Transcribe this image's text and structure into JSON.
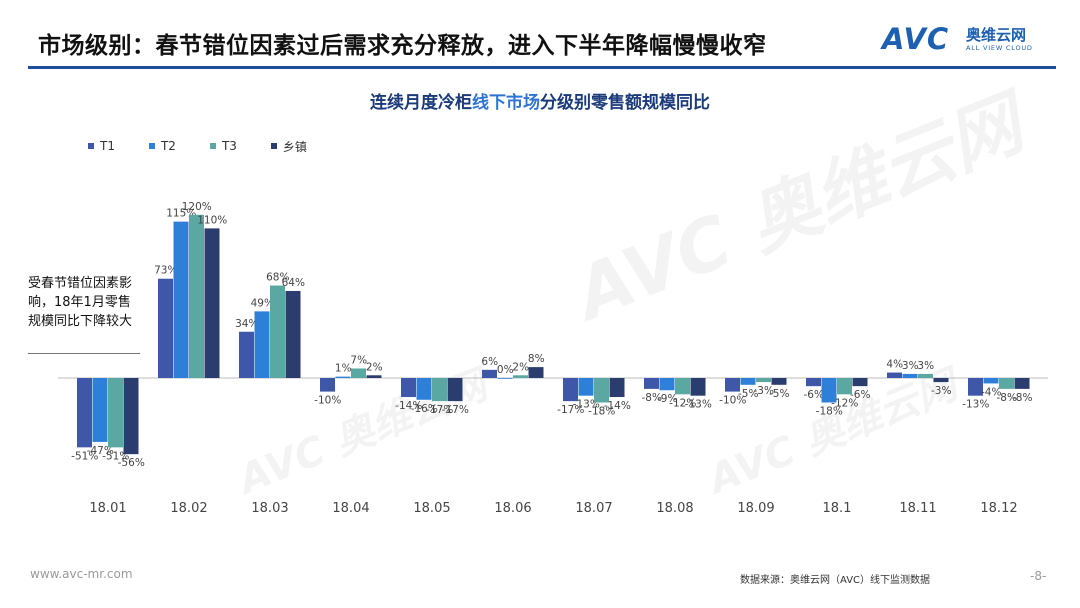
{
  "slide": {
    "title": "市场级别：春节错位因素过后需求充分释放，进入下半年降幅慢慢收窄"
  },
  "logo": {
    "text": "AVC",
    "cn": "奥维云网",
    "en": "ALL VIEW CLOUD"
  },
  "chart_title": {
    "part1": "连续月度冷柜",
    "part2": "线下市场",
    "part3": "分级别零售额规模同比"
  },
  "annotation": "受春节错位因素影响，18年1月零售规模同比下降较大",
  "footer": {
    "website": "www.avc-mr.com",
    "source": "数据来源：奥维云网（AVC）线下监测数据",
    "page": "-8-"
  },
  "colors": {
    "T1": "#3f57a8",
    "T2": "#2e7fd8",
    "T3": "#5ba7a2",
    "乡镇": "#2b3d6e",
    "title_rule": "#1f4f9c"
  },
  "chart_data": {
    "type": "bar",
    "title": "连续月度冷柜线下市场分级别零售额规模同比",
    "categories": [
      "18.01",
      "18.02",
      "18.03",
      "18.04",
      "18.05",
      "18.06",
      "18.07",
      "18.08",
      "18.09",
      "18.1",
      "18.11",
      "18.12"
    ],
    "series": [
      {
        "name": "T1",
        "values": [
          -51,
          73,
          34,
          -10,
          -14,
          6,
          -17,
          -8,
          -10,
          -6,
          4,
          -13
        ]
      },
      {
        "name": "T2",
        "values": [
          -47,
          115,
          49,
          1,
          -16,
          0,
          -13,
          -9,
          -5,
          -18,
          3,
          -4
        ]
      },
      {
        "name": "T3",
        "values": [
          -51,
          120,
          68,
          7,
          -17,
          2,
          -18,
          -12,
          -3,
          -12,
          3,
          -8
        ]
      },
      {
        "name": "乡镇",
        "values": [
          -56,
          110,
          64,
          2,
          -17,
          8,
          -14,
          -13,
          -5,
          -6,
          -3,
          -8
        ]
      }
    ],
    "unit": "%",
    "ylim": [
      -60,
      125
    ],
    "grid": false,
    "legend": "top-left"
  }
}
